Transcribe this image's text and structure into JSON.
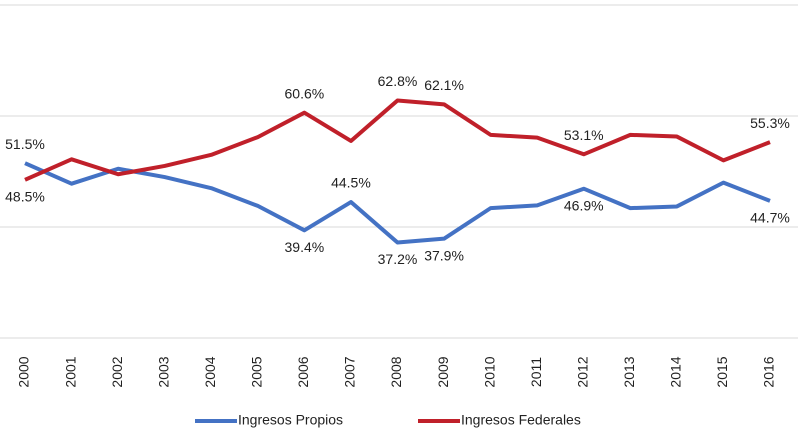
{
  "chart_data": {
    "type": "line",
    "categories": [
      "2000",
      "2001",
      "2002",
      "2003",
      "2004",
      "2005",
      "2006",
      "2007",
      "2008",
      "2009",
      "2010",
      "2011",
      "2012",
      "2013",
      "2014",
      "2015",
      "2016"
    ],
    "series": [
      {
        "name": "Ingresos Propios",
        "color": "#4472c4",
        "values": [
          51.5,
          47.8,
          50.5,
          49.0,
          47.0,
          43.8,
          39.4,
          44.5,
          37.2,
          37.9,
          43.4,
          43.9,
          46.9,
          43.4,
          43.7,
          48.0,
          44.7
        ],
        "value_labels": [
          "51.5%",
          null,
          null,
          null,
          null,
          null,
          "39.4%",
          "44.5%",
          "37.2%",
          "37.9%",
          null,
          null,
          "46.9%",
          null,
          null,
          null,
          "44.7%"
        ]
      },
      {
        "name": "Ingresos Federales",
        "color": "#c0202a",
        "values": [
          48.5,
          52.2,
          49.5,
          51.0,
          53.0,
          56.2,
          60.6,
          55.5,
          62.8,
          62.1,
          56.6,
          56.1,
          53.1,
          56.6,
          56.3,
          52.0,
          55.3
        ],
        "value_labels": [
          "48.5%",
          null,
          null,
          null,
          null,
          null,
          "60.6%",
          null,
          "62.8%",
          "62.1%",
          null,
          null,
          "53.1%",
          null,
          null,
          null,
          "55.3%"
        ]
      }
    ],
    "ylim": [
      20,
      80
    ],
    "yticks": [
      20,
      40,
      60,
      80
    ],
    "grid": true,
    "legend": "bottom"
  }
}
